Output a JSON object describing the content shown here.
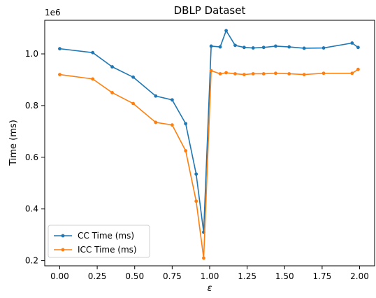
{
  "chart_data": {
    "type": "line",
    "title": "DBLP Dataset",
    "xlabel": "ε",
    "ylabel": "Time (ms)",
    "y_multiplier_label": "1e6",
    "xlim": [
      -0.1,
      2.1
    ],
    "ylim": [
      0.18,
      1.13
    ],
    "y_scale_factor": 1000000,
    "xticks": [
      0.0,
      0.25,
      0.5,
      0.75,
      1.0,
      1.25,
      1.5,
      1.75,
      2.0
    ],
    "xtick_labels": [
      "0.00",
      "0.25",
      "0.50",
      "0.75",
      "1.00",
      "1.25",
      "1.50",
      "1.75",
      "2.00"
    ],
    "yticks": [
      0.2,
      0.4,
      0.6,
      0.8,
      1.0
    ],
    "ytick_labels": [
      "0.2",
      "0.4",
      "0.6",
      "0.8",
      "1.0"
    ],
    "grid": false,
    "legend_position": "lower-left",
    "series": [
      {
        "name": "CC Time (ms)",
        "color": "#1f77b4",
        "x": [
          0.0,
          0.22,
          0.35,
          0.49,
          0.64,
          0.75,
          0.84,
          0.91,
          0.96,
          1.01,
          1.07,
          1.11,
          1.17,
          1.23,
          1.29,
          1.36,
          1.44,
          1.53,
          1.63,
          1.76,
          1.95,
          1.99
        ],
        "y": [
          1.02,
          1.005,
          0.95,
          0.91,
          0.837,
          0.822,
          0.73,
          0.535,
          0.31,
          1.03,
          1.027,
          1.09,
          1.033,
          1.025,
          1.023,
          1.025,
          1.03,
          1.027,
          1.022,
          1.023,
          1.042,
          1.025
        ]
      },
      {
        "name": "ICC Time (ms)",
        "color": "#ff7f0e",
        "x": [
          0.0,
          0.22,
          0.35,
          0.49,
          0.64,
          0.75,
          0.84,
          0.91,
          0.96,
          1.01,
          1.07,
          1.11,
          1.17,
          1.23,
          1.29,
          1.36,
          1.44,
          1.53,
          1.63,
          1.76,
          1.95,
          1.99
        ],
        "y": [
          0.92,
          0.903,
          0.85,
          0.808,
          0.735,
          0.725,
          0.625,
          0.43,
          0.21,
          0.935,
          0.923,
          0.927,
          0.923,
          0.92,
          0.923,
          0.923,
          0.925,
          0.923,
          0.92,
          0.925,
          0.925,
          0.94
        ]
      }
    ]
  }
}
